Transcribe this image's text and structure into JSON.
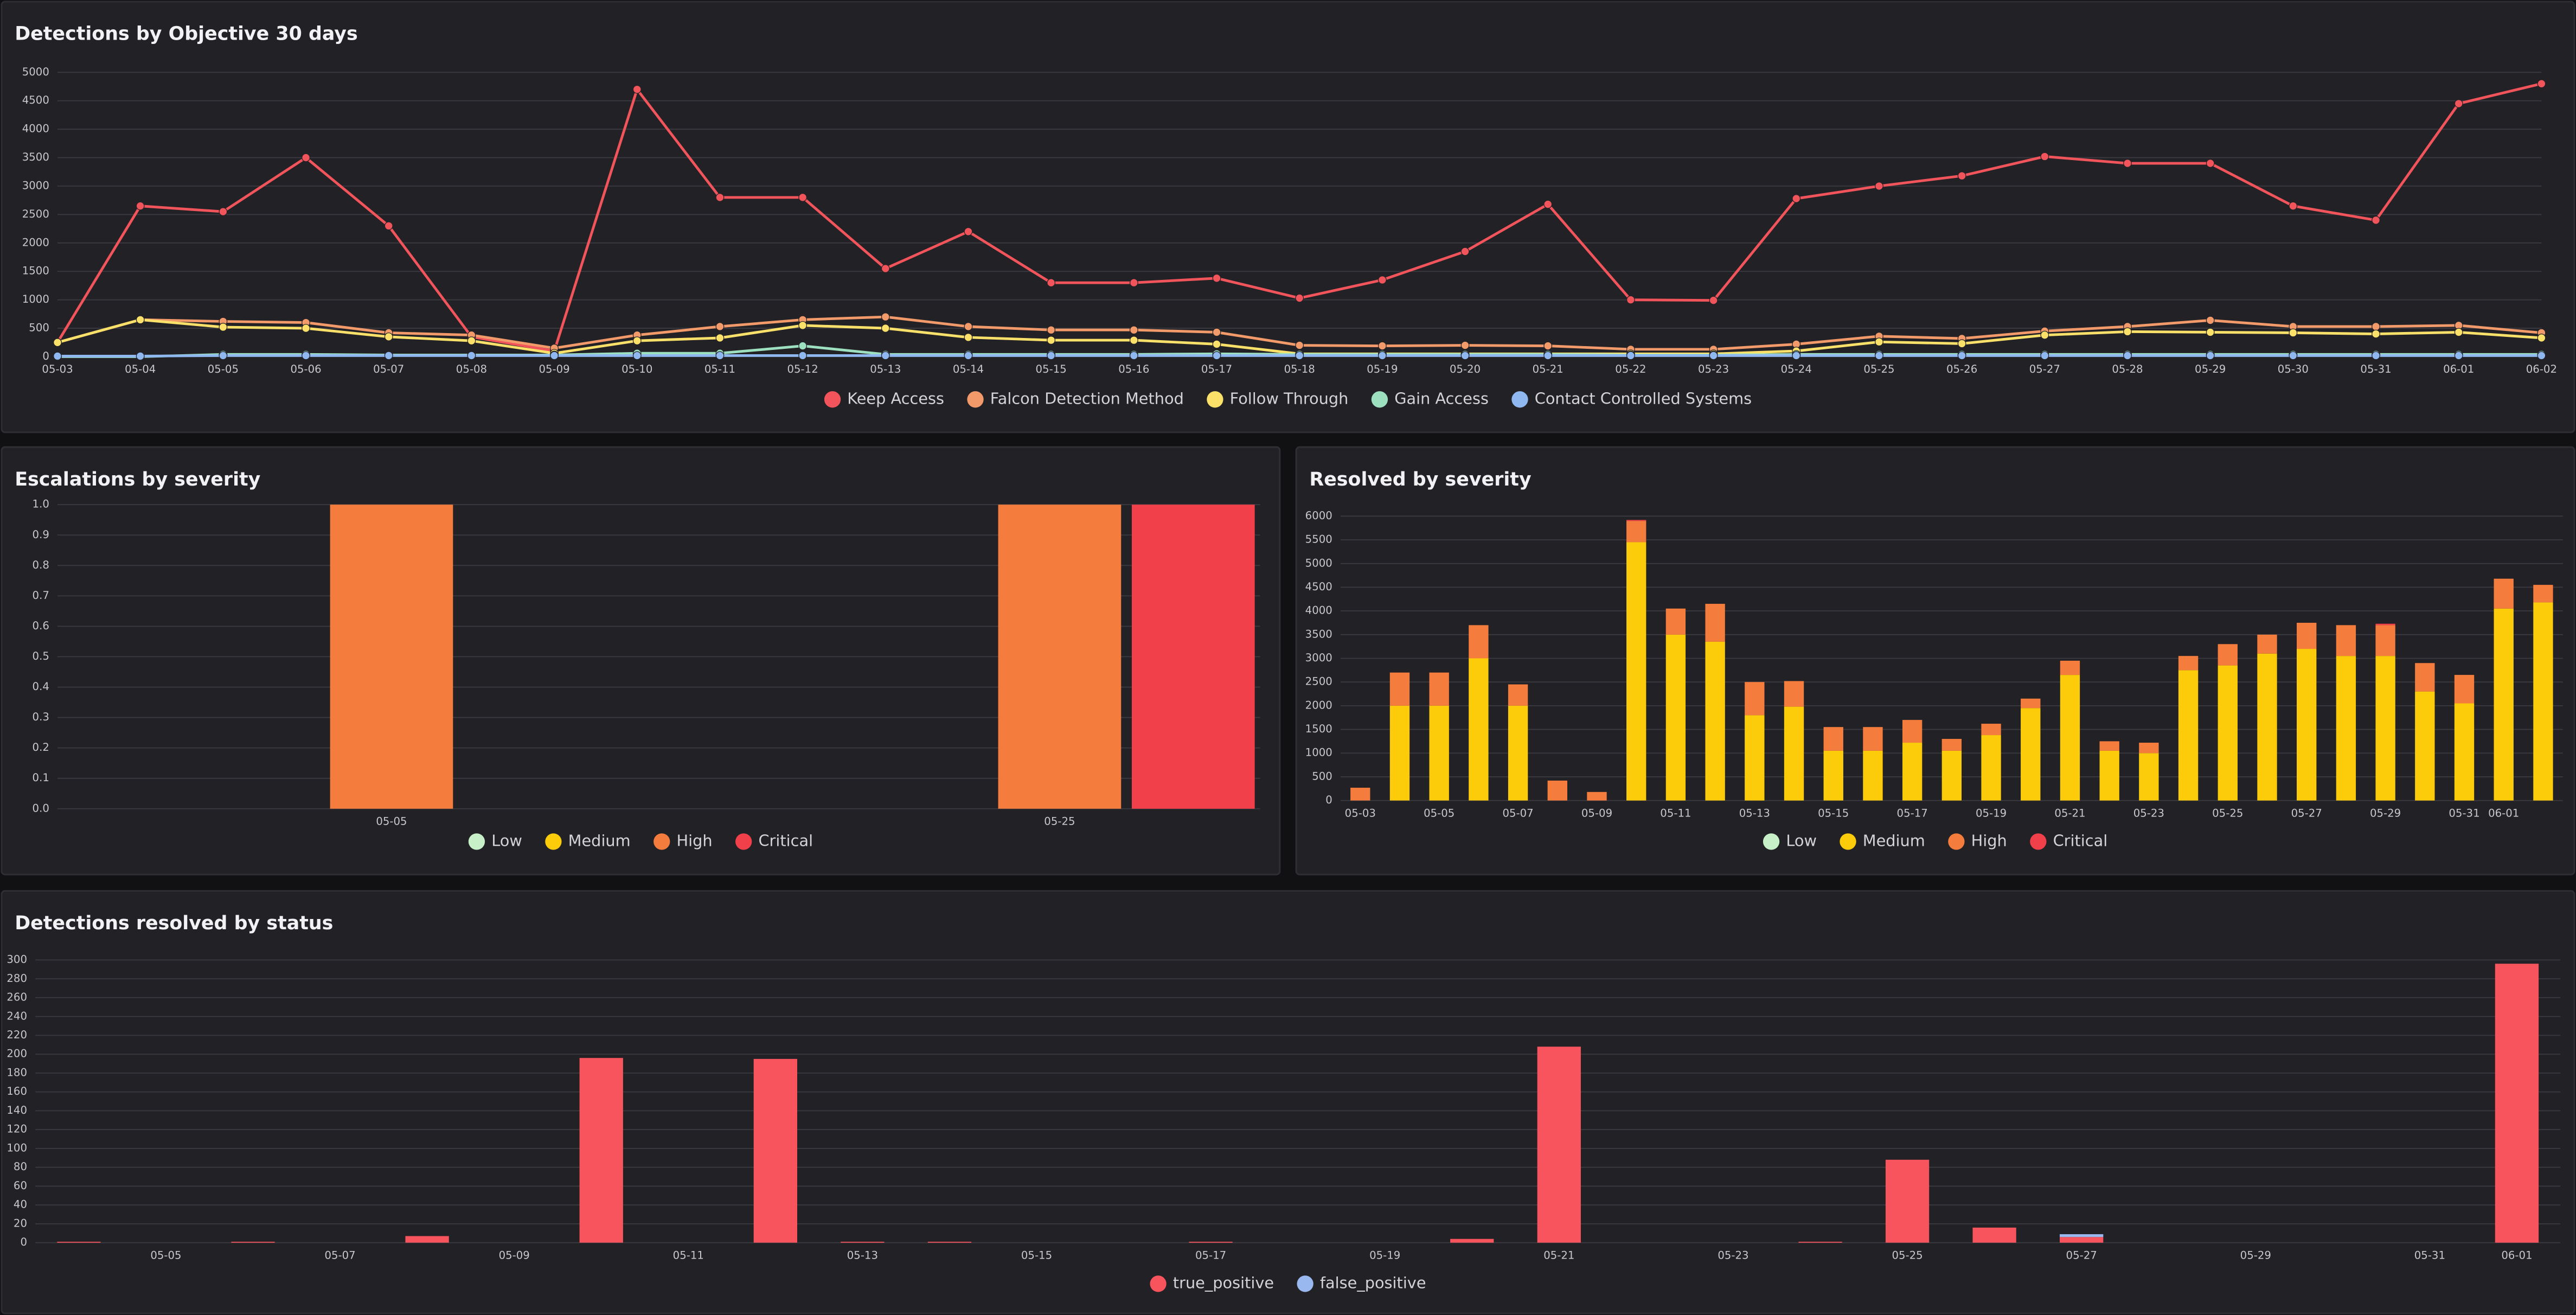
{
  "chart_data": [
    {
      "type": "line",
      "title": "Detections by Objective 30 days",
      "grid": true,
      "legend": "bottom",
      "categories": [
        "05-03",
        "05-04",
        "05-05",
        "05-06",
        "05-07",
        "05-08",
        "05-09",
        "05-10",
        "05-11",
        "05-12",
        "05-13",
        "05-14",
        "05-15",
        "05-16",
        "05-17",
        "05-18",
        "05-19",
        "05-20",
        "05-21",
        "05-22",
        "05-23",
        "05-24",
        "05-25",
        "05-26",
        "05-27",
        "05-28",
        "05-29",
        "05-30",
        "05-31",
        "06-01",
        "06-02"
      ],
      "ylim": [
        0,
        5000
      ],
      "yticks": [
        0,
        500,
        1000,
        1500,
        2000,
        2500,
        3000,
        3500,
        4000,
        4500,
        5000
      ],
      "series": [
        {
          "name": "Keep Access",
          "color": "#f2545b",
          "values": [
            250,
            2650,
            2550,
            3500,
            2300,
            350,
            100,
            4700,
            2800,
            2800,
            1550,
            2200,
            1300,
            1300,
            1380,
            1030,
            1350,
            1850,
            2680,
            1000,
            990,
            2780,
            3000,
            3180,
            3520,
            3400,
            3400,
            2650,
            2400,
            4450,
            4800
          ]
        },
        {
          "name": "Falcon Detection Method",
          "color": "#f39a6b",
          "values": [
            250,
            650,
            620,
            600,
            420,
            380,
            150,
            380,
            530,
            650,
            700,
            530,
            470,
            470,
            430,
            200,
            190,
            200,
            190,
            130,
            130,
            220,
            360,
            320,
            450,
            530,
            640,
            530,
            530,
            550,
            420
          ]
        },
        {
          "name": "Follow Through",
          "color": "#fbe06a",
          "values": [
            250,
            650,
            520,
            500,
            350,
            280,
            60,
            280,
            330,
            550,
            500,
            340,
            290,
            290,
            220,
            50,
            50,
            50,
            50,
            50,
            50,
            100,
            260,
            230,
            380,
            440,
            430,
            420,
            400,
            430,
            330
          ]
        },
        {
          "name": "Gain Access",
          "color": "#9de0c0",
          "values": [
            0,
            0,
            40,
            40,
            30,
            30,
            30,
            60,
            60,
            190,
            40,
            40,
            40,
            40,
            50,
            40,
            40,
            40,
            40,
            30,
            30,
            40,
            40,
            40,
            40,
            40,
            40,
            40,
            40,
            40,
            40
          ]
        },
        {
          "name": "Contact Controlled Systems",
          "color": "#8fb8f0",
          "values": [
            10,
            10,
            20,
            20,
            20,
            20,
            20,
            20,
            20,
            20,
            20,
            20,
            20,
            20,
            20,
            20,
            20,
            20,
            20,
            20,
            20,
            20,
            20,
            20,
            20,
            20,
            20,
            20,
            20,
            20,
            20
          ]
        }
      ]
    },
    {
      "type": "bar",
      "stacked": true,
      "title": "Escalations by severity",
      "grid": true,
      "legend": "bottom",
      "categories": [
        null,
        null,
        "05-05",
        null,
        null,
        null,
        null,
        "05-25",
        null
      ],
      "ylim": [
        0,
        1
      ],
      "yticks": [
        {
          "value": 0,
          "label": "0.0"
        },
        {
          "value": 0.1,
          "label": "0.1"
        },
        {
          "value": 0.2,
          "label": "0.2"
        },
        {
          "value": 0.3,
          "label": "0.3"
        },
        {
          "value": 0.4,
          "label": "0.4"
        },
        {
          "value": 0.5,
          "label": "0.5"
        },
        {
          "value": 0.6,
          "label": "0.6"
        },
        {
          "value": 0.7,
          "label": "0.7"
        },
        {
          "value": 0.8,
          "label": "0.8"
        },
        {
          "value": 0.9,
          "label": "0.9"
        },
        {
          "value": 1,
          "label": "1.0"
        }
      ],
      "series": [
        {
          "name": "Low",
          "color": "#c8f0c8",
          "values": [
            0,
            0,
            0,
            0,
            0,
            0,
            0,
            0,
            0
          ]
        },
        {
          "name": "Medium",
          "color": "#fccc0a",
          "values": [
            0,
            0,
            0,
            0,
            0,
            0,
            0,
            0,
            0
          ]
        },
        {
          "name": "High",
          "color": "#f47c3c",
          "values": [
            0,
            0,
            1,
            0,
            0,
            0,
            0,
            1,
            0
          ]
        },
        {
          "name": "Critical",
          "color": "#f2404a",
          "values": [
            0,
            0,
            0,
            0,
            0,
            0,
            0,
            0,
            1
          ]
        }
      ]
    },
    {
      "type": "bar",
      "stacked": true,
      "title": "Resolved by severity",
      "grid": true,
      "legend": "bottom",
      "categories": [
        "05-03",
        null,
        "05-05",
        null,
        "05-07",
        null,
        "05-09",
        null,
        "05-11",
        null,
        "05-13",
        null,
        "05-15",
        null,
        "05-17",
        null,
        "05-19",
        null,
        "05-21",
        null,
        "05-23",
        null,
        "05-25",
        null,
        "05-27",
        null,
        "05-29",
        null,
        "05-31",
        "06-01",
        null
      ],
      "ylim": [
        0,
        6000
      ],
      "yticks": [
        0,
        500,
        1000,
        1500,
        2000,
        2500,
        3000,
        3500,
        4000,
        4500,
        5000,
        5500,
        6000
      ],
      "series": [
        {
          "name": "Low",
          "color": "#c8f0c8",
          "values": [
            0,
            0,
            0,
            0,
            0,
            0,
            0,
            0,
            0,
            0,
            0,
            0,
            0,
            0,
            0,
            0,
            0,
            0,
            0,
            0,
            0,
            0,
            0,
            0,
            0,
            0,
            0,
            0,
            0,
            0,
            0
          ]
        },
        {
          "name": "Medium",
          "color": "#fccc0a",
          "values": [
            0,
            2000,
            2000,
            3000,
            2000,
            0,
            0,
            5450,
            3500,
            3350,
            1800,
            1980,
            1050,
            1050,
            1220,
            1050,
            1380,
            1950,
            2650,
            1050,
            1000,
            2750,
            2850,
            3100,
            3200,
            3050,
            3050,
            2300,
            2050,
            4050,
            4180
          ]
        },
        {
          "name": "High",
          "color": "#f47c3c",
          "values": [
            270,
            700,
            700,
            700,
            450,
            420,
            180,
            450,
            550,
            800,
            700,
            540,
            500,
            500,
            480,
            250,
            240,
            200,
            300,
            200,
            220,
            300,
            450,
            400,
            550,
            650,
            650,
            600,
            600,
            630,
            370
          ]
        },
        {
          "name": "Critical",
          "color": "#f2404a",
          "values": [
            0,
            0,
            0,
            0,
            0,
            0,
            0,
            20,
            0,
            0,
            0,
            0,
            0,
            0,
            0,
            0,
            0,
            0,
            0,
            0,
            0,
            0,
            0,
            0,
            0,
            0,
            30,
            0,
            0,
            0,
            0
          ]
        }
      ]
    },
    {
      "type": "bar",
      "stacked": true,
      "title": "Detections resolved by status",
      "grid": true,
      "legend": "bottom",
      "categories": [
        null,
        "05-05",
        null,
        "05-07",
        null,
        "05-09",
        null,
        "05-11",
        null,
        "05-13",
        null,
        "05-15",
        null,
        "05-17",
        null,
        "05-19",
        null,
        "05-21",
        null,
        "05-23",
        null,
        "05-25",
        null,
        "05-27",
        null,
        "05-29",
        null,
        "05-31",
        "06-01"
      ],
      "ylim": [
        0,
        300
      ],
      "yticks": [
        0,
        20,
        40,
        60,
        80,
        100,
        120,
        140,
        160,
        180,
        200,
        220,
        240,
        260,
        280,
        300
      ],
      "series": [
        {
          "name": "true_positive",
          "color": "#f7545d",
          "values": [
            1,
            0,
            1,
            0,
            7,
            0,
            196,
            0,
            195,
            1,
            1,
            0,
            0,
            1,
            0,
            0,
            4,
            208,
            0,
            0,
            1,
            88,
            16,
            6,
            0,
            0,
            0,
            0,
            296
          ]
        },
        {
          "name": "false_positive",
          "color": "#9ab8f0",
          "values": [
            0,
            0,
            0,
            0,
            0,
            0,
            0,
            0,
            0,
            0,
            0,
            0,
            0,
            0,
            0,
            0,
            0,
            0,
            0,
            0,
            0,
            0,
            0,
            3,
            0,
            0,
            0,
            0,
            0
          ]
        }
      ]
    }
  ]
}
